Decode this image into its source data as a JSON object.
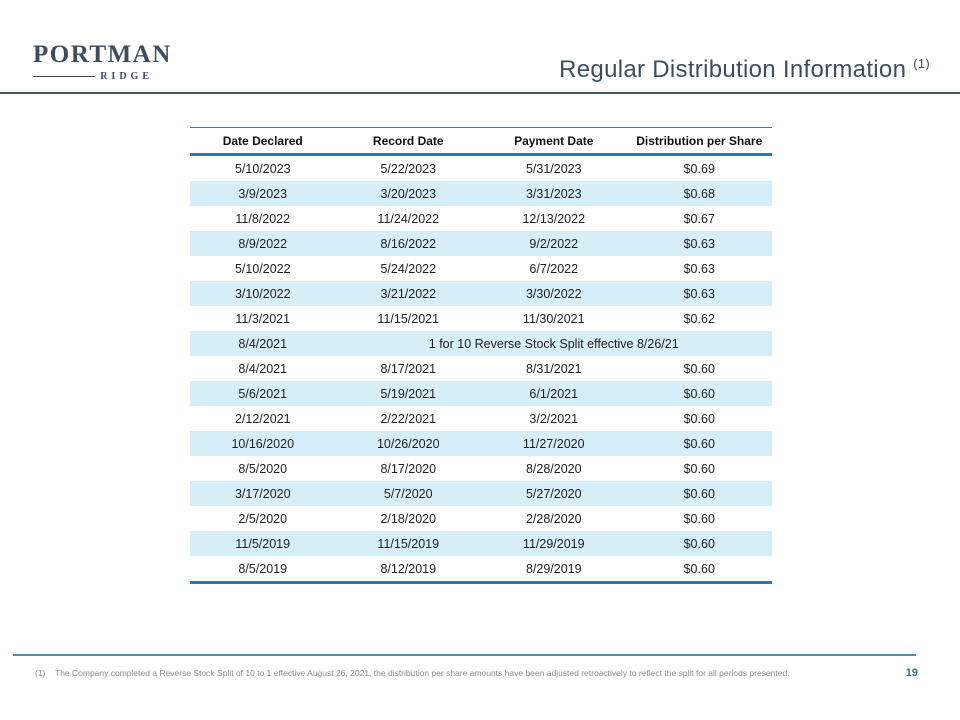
{
  "logo": {
    "primary": "PORTMAN",
    "secondary": "RIDGE"
  },
  "header": {
    "title": "Regular Distribution Information",
    "title_superscript": "(1)"
  },
  "table": {
    "columns": [
      "Date Declared",
      "Record Date",
      "Payment Date",
      "Distribution per Share"
    ],
    "rows": [
      {
        "cells": [
          "5/10/2023",
          "5/22/2023",
          "5/31/2023",
          "$0.69"
        ]
      },
      {
        "cells": [
          "3/9/2023",
          "3/20/2023",
          "3/31/2023",
          "$0.68"
        ]
      },
      {
        "cells": [
          "11/8/2022",
          "11/24/2022",
          "12/13/2022",
          "$0.67"
        ]
      },
      {
        "cells": [
          "8/9/2022",
          "8/16/2022",
          "9/2/2022",
          "$0.63"
        ]
      },
      {
        "cells": [
          "5/10/2022",
          "5/24/2022",
          "6/7/2022",
          "$0.63"
        ]
      },
      {
        "cells": [
          "3/10/2022",
          "3/21/2022",
          "3/30/2022",
          "$0.63"
        ]
      },
      {
        "cells": [
          "11/3/2021",
          "11/15/2021",
          "11/30/2021",
          "$0.62"
        ]
      },
      {
        "cells": [
          "8/4/2021"
        ],
        "span_note": "1 for 10 Reverse Stock Split effective 8/26/21"
      },
      {
        "cells": [
          "8/4/2021",
          "8/17/2021",
          "8/31/2021",
          "$0.60"
        ]
      },
      {
        "cells": [
          "5/6/2021",
          "5/19/2021",
          "6/1/2021",
          "$0.60"
        ]
      },
      {
        "cells": [
          "2/12/2021",
          "2/22/2021",
          "3/2/2021",
          "$0.60"
        ]
      },
      {
        "cells": [
          "10/16/2020",
          "10/26/2020",
          "11/27/2020",
          "$0.60"
        ]
      },
      {
        "cells": [
          "8/5/2020",
          "8/17/2020",
          "8/28/2020",
          "$0.60"
        ]
      },
      {
        "cells": [
          "3/17/2020",
          "5/7/2020",
          "5/27/2020",
          "$0.60"
        ]
      },
      {
        "cells": [
          "2/5/2020",
          "2/18/2020",
          "2/28/2020",
          "$0.60"
        ]
      },
      {
        "cells": [
          "11/5/2019",
          "11/15/2019",
          "11/29/2019",
          "$0.60"
        ]
      },
      {
        "cells": [
          "8/5/2019",
          "8/12/2019",
          "8/29/2019",
          "$0.60"
        ]
      }
    ]
  },
  "footer": {
    "footnote_marker": "(1)",
    "footnote_text": "The Company completed a Reverse Stock Split of 10 to 1 effective August 26, 2021, the distribution per share amounts have been adjusted retroactively to reflect the split for all periods presented.",
    "page_number": "19"
  },
  "colors": {
    "accent_blue": "#2e75b6",
    "row_alt_blue": "#d6eef8",
    "slate_title": "#3c4d5f",
    "footer_line_blue": "#4e8cb5",
    "page_number_blue": "#31708f"
  }
}
